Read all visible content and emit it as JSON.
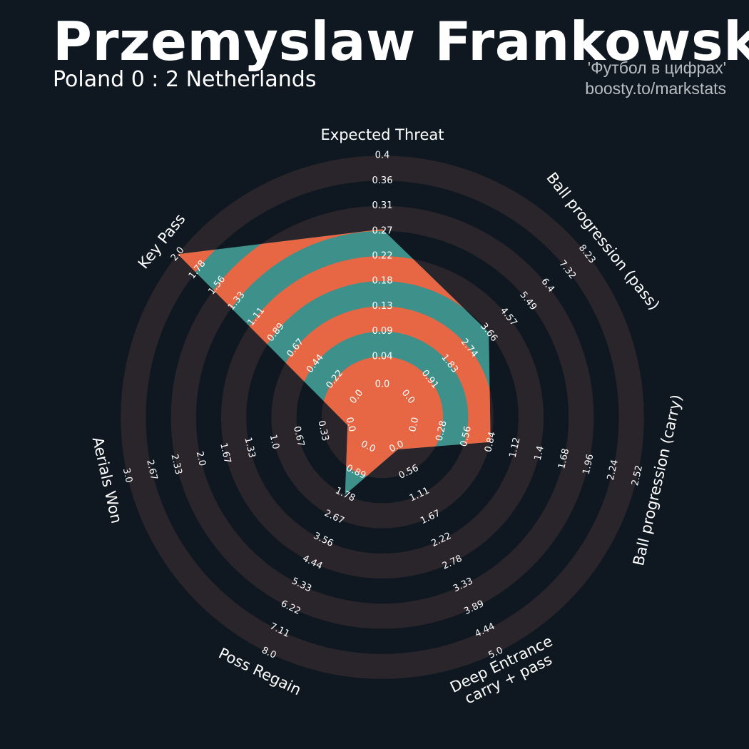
{
  "header": {
    "title": "Przemyslaw Frankowski",
    "subtitle": "Poland 0 : 2 Netherlands",
    "credit_line1": "'Футбол в цифрах'",
    "credit_line2": "boosty.to/markstats"
  },
  "colors": {
    "background": "#0f1821",
    "ring": "#2a252b",
    "fill_primary": "#3d918a",
    "fill_alt": "#e76644",
    "text": "#ffffff"
  },
  "chart_data": {
    "type": "radar",
    "title": "Przemyslaw Frankowski",
    "params": [
      {
        "label": "Expected Threat",
        "min": 0.0,
        "max": 0.4,
        "value": 0.27,
        "ticks": [
          "0.0",
          "0.04",
          "0.09",
          "0.13",
          "0.18",
          "0.22",
          "0.27",
          "0.31",
          "0.36",
          "0.4"
        ]
      },
      {
        "label": "Ball progression (pass)",
        "min": 0.0,
        "max": 8.23,
        "value": 3.66,
        "ticks": [
          "0.0",
          "0.91",
          "1.83",
          "2.74",
          "3.66",
          "4.57",
          "5.49",
          "6.4",
          "7.32",
          "8.23"
        ]
      },
      {
        "label": "Ball progression (carry)",
        "min": 0.0,
        "max": 2.52,
        "value": 0.84,
        "ticks": [
          "0.0",
          "0.28",
          "0.56",
          "0.84",
          "1.12",
          "1.4",
          "1.68",
          "1.96",
          "2.24",
          "2.52"
        ]
      },
      {
        "label": "Deep Entrance\ncarry + pass",
        "min": 0.0,
        "max": 5.0,
        "value": 0.0,
        "ticks": [
          "0.0",
          "0.56",
          "1.11",
          "1.67",
          "2.22",
          "2.78",
          "3.33",
          "3.89",
          "4.44",
          "5.0"
        ]
      },
      {
        "label": "Poss Regain",
        "min": 0.0,
        "max": 8.0,
        "value": 1.78,
        "ticks": [
          "0.0",
          "0.89",
          "1.78",
          "2.67",
          "3.56",
          "4.44",
          "5.33",
          "6.22",
          "7.11",
          "8.0"
        ]
      },
      {
        "label": "Aerials Won",
        "min": 0.0,
        "max": 3.0,
        "value": 0.0,
        "ticks": [
          "0.0",
          "0.33",
          "0.67",
          "1.0",
          "1.33",
          "1.67",
          "2.0",
          "2.33",
          "2.67",
          "3.0"
        ]
      },
      {
        "label": "Key Pass",
        "min": 0.0,
        "max": 2.0,
        "value": 2.0,
        "ticks": [
          "0.0",
          "0.22",
          "0.44",
          "0.67",
          "0.89",
          "1.11",
          "1.33",
          "1.56",
          "1.78",
          "2.0"
        ]
      }
    ]
  }
}
